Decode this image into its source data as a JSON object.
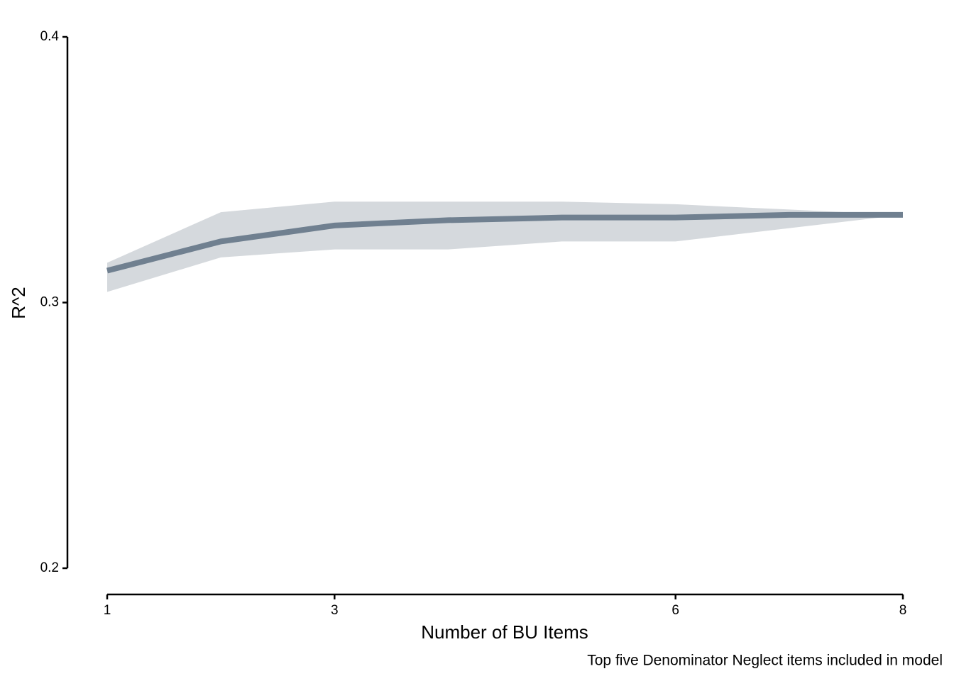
{
  "chart_data": {
    "type": "line",
    "x_label": "Number of BU Items",
    "y_label": "R^2",
    "caption": "Top five Denominator Neglect items included in model",
    "x": [
      1,
      2,
      3,
      4,
      5,
      6,
      7,
      8
    ],
    "series": [
      {
        "color": "#708090",
        "band_color": "#d5d9dd",
        "values": [
          0.312,
          0.323,
          0.329,
          0.331,
          0.332,
          0.332,
          0.333,
          0.333
        ],
        "upper": [
          0.315,
          0.334,
          0.338,
          0.338,
          0.338,
          0.337,
          0.335,
          0.333
        ],
        "lower": [
          0.304,
          0.317,
          0.32,
          0.32,
          0.323,
          0.323,
          0.328,
          0.333
        ]
      }
    ],
    "xlim": [
      1,
      8
    ],
    "xticks": [
      1,
      3,
      6,
      8
    ],
    "ylim": [
      0.2,
      0.4
    ],
    "yticks": [
      0.2,
      0.3,
      0.4
    ]
  }
}
